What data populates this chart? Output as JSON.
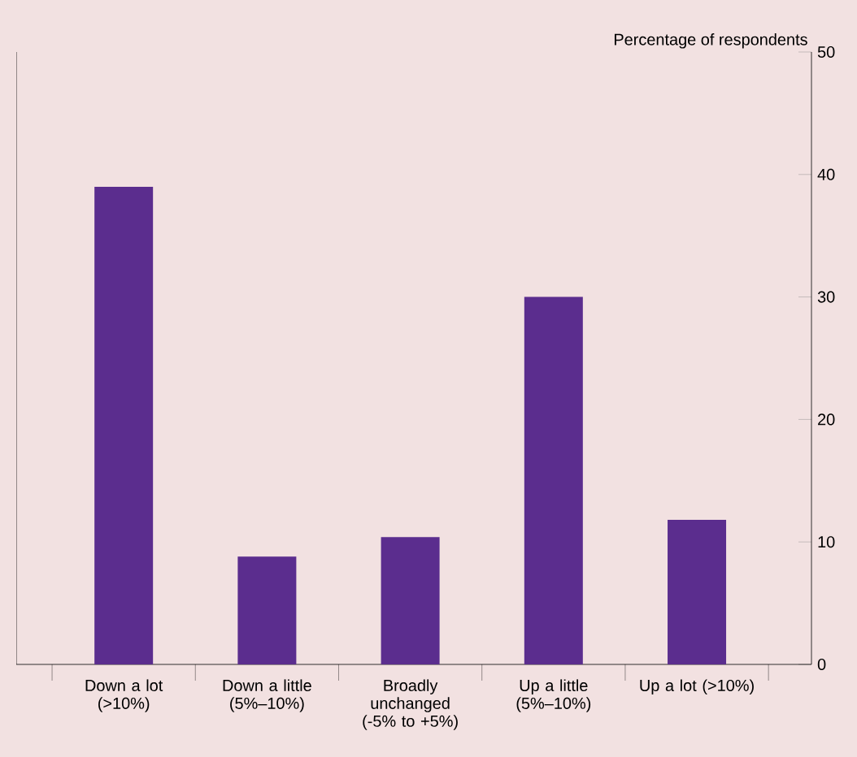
{
  "chart_data": {
    "type": "bar",
    "ylabel": "Percentage of respondents",
    "categories": [
      "Down a lot (>10%)",
      "Down a little (5%–10%)",
      "Broadly unchanged (-5% to +5%)",
      "Up a little (5%–10%)",
      "Up a lot (>10%)"
    ],
    "values": [
      39,
      8.8,
      10.4,
      30,
      11.8
    ],
    "color": "#5b2d8e",
    "ylim": [
      0,
      50
    ],
    "yticks": [
      0,
      10,
      20,
      30,
      40,
      50
    ],
    "grid": false
  }
}
